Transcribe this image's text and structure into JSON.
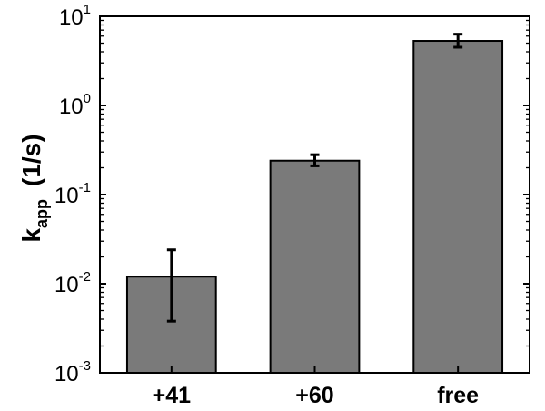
{
  "chart_data": {
    "type": "bar",
    "title": "",
    "xlabel": "",
    "ylabel": {
      "main": "k",
      "subscript": "app",
      "unit": "(1/s)"
    },
    "y_scale": "log",
    "ylim": [
      0.001,
      10
    ],
    "y_ticks": [
      {
        "base": "10",
        "exp": "-3"
      },
      {
        "base": "10",
        "exp": "-2"
      },
      {
        "base": "10",
        "exp": "-1"
      },
      {
        "base": "10",
        "exp": "0"
      },
      {
        "base": "10",
        "exp": "1"
      }
    ],
    "categories": [
      "+41",
      "+60",
      "free"
    ],
    "values": [
      0.012,
      0.24,
      5.3
    ],
    "error_low": [
      0.0038,
      0.21,
      4.5
    ],
    "error_high": [
      0.024,
      0.28,
      6.3
    ],
    "grid": false,
    "colors": {
      "bar": "#7a7a7a",
      "outline": "#000000",
      "error_bar": "#000000"
    }
  }
}
